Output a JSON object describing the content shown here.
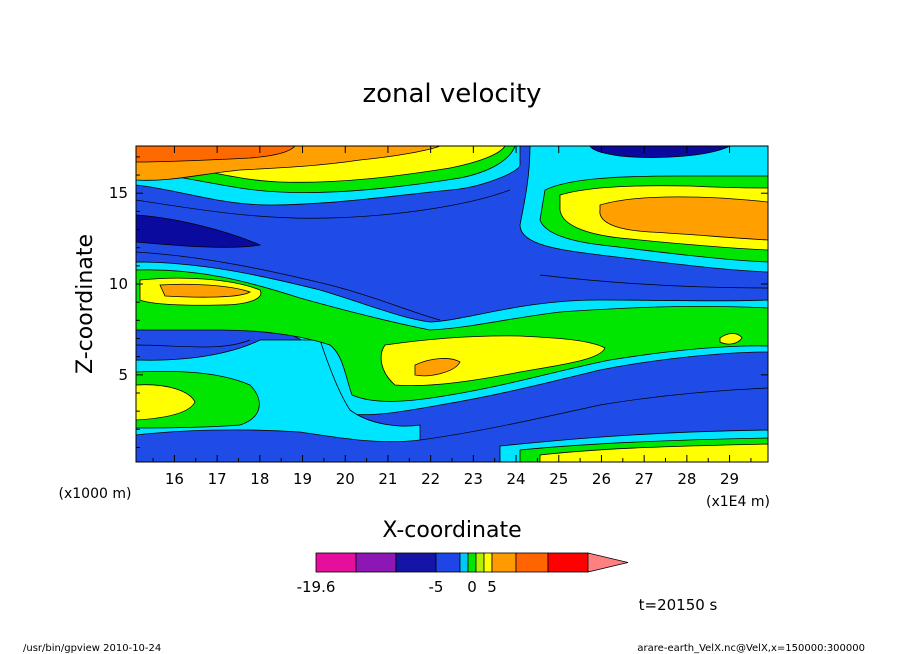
{
  "chart_data": {
    "type": "heatmap",
    "title": "zonal velocity",
    "xlabel": "X-coordinate",
    "ylabel": "Z-coordinate",
    "x_units_note": "(x1E4 m)",
    "y_units_note": "(x1000 m)",
    "xlim": [
      15.1,
      29.9
    ],
    "ylim": [
      0.2,
      17.6
    ],
    "x_ticks": [
      "16",
      "17",
      "18",
      "19",
      "20",
      "21",
      "22",
      "23",
      "24",
      "25",
      "26",
      "27",
      "28",
      "29"
    ],
    "y_ticks": [
      "5",
      "10",
      "15"
    ],
    "x_tick_values": [
      16,
      17,
      18,
      19,
      20,
      21,
      22,
      23,
      24,
      25,
      26,
      27,
      28,
      29
    ],
    "y_tick_values": [
      5,
      10,
      15
    ],
    "colorbar": {
      "labels": [
        {
          "text": "-19.6",
          "index": 0
        },
        {
          "text": "-5",
          "index": 3
        },
        {
          "text": "0",
          "index": 5.5
        },
        {
          "text": "5",
          "index": 8
        }
      ],
      "colors": [
        "#e60e9c",
        "#8c17b5",
        "#1414a6",
        "#1e46e6",
        "#00c8ff",
        "#00e600",
        "#b4f000",
        "#ffff00",
        "#ff9b00",
        "#ff6400",
        "#ff0000"
      ],
      "arrow_color": "#ff8080",
      "widths": [
        1,
        1,
        1,
        0.6,
        0.2,
        0.2,
        0.2,
        0.2,
        0.6,
        0.8,
        1
      ]
    },
    "levels": [
      {
        "name": "deep-blue",
        "color": "#0a0a9e",
        "z": [
          [
            0.2,
            0.2,
            0.2,
            0.2,
            0.2,
            0.2,
            0.2,
            0.2,
            0.2,
            0.2,
            0.2,
            0.2,
            0.2,
            0.2,
            0.2
          ],
          [
            0.2,
            0.2,
            0.2,
            0.2,
            0.2,
            0.2,
            0.2,
            0.2,
            0.2,
            0.2,
            0.2,
            0.2,
            0.2,
            0.2,
            0.2
          ]
        ]
      },
      {
        "name": "blue",
        "color": "#1f4be6"
      },
      {
        "name": "cyan",
        "color": "#00e5ff"
      },
      {
        "name": "green",
        "color": "#00e600"
      },
      {
        "name": "yellow",
        "color": "#ffff00"
      },
      {
        "name": "light-orange",
        "color": "#ffb400"
      },
      {
        "name": "orange",
        "color": "#ff9900"
      },
      {
        "name": "dark-orange",
        "color": "#ff6a00"
      }
    ]
  },
  "time_label": "t=20150 s",
  "footer_left": "/usr/bin/gpview   2010-10-24",
  "footer_right": "arare-earth_VelX.nc@VelX,x=150000:300000"
}
